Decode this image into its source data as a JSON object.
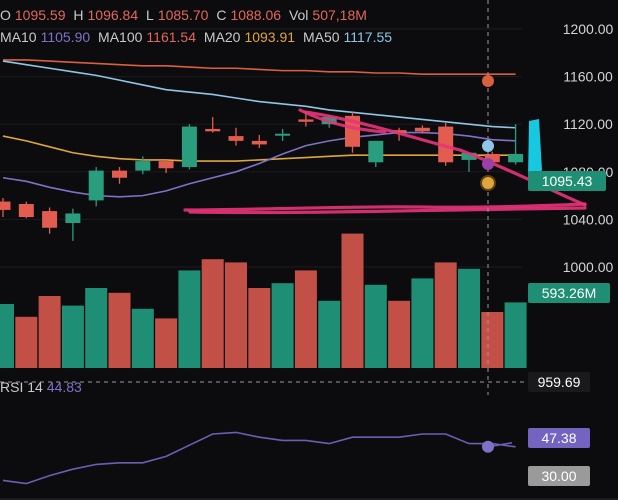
{
  "legend": {
    "o_label": "O",
    "o_value": "1095.59",
    "h_label": "H",
    "h_value": "1096.84",
    "l_label": "L",
    "l_value": "1085.70",
    "c_label": "C",
    "c_value": "1088.06",
    "vol_label": "Vol",
    "vol_value": "507,18M",
    "ma10_label": "MA10",
    "ma10_value": "1105.90",
    "ma100_label": "MA100",
    "ma100_value": "1161.54",
    "ma20_label": "MA20",
    "ma20_value": "1093.91",
    "ma50_label": "MA50",
    "ma50_value": "1117.55"
  },
  "rsi": {
    "label": "RSI 14",
    "value": "44.83"
  },
  "colors": {
    "up": "#2a9d7f",
    "down": "#e25c4f",
    "ma10": "#7e72c8",
    "ma20": "#e0a53c",
    "ma50": "#8fc6e6",
    "ma100": "#d9603e",
    "annotation": "#e8337a",
    "background": "#0c0c0e"
  },
  "chart_data": {
    "type": "candlestick",
    "y_axis": {
      "ticks": [
        "1200.00",
        "1160.00",
        "1120.00",
        "1080.00",
        "1040.00",
        "1000.00"
      ],
      "ylim": [
        953,
        1205
      ]
    },
    "price_label": "1095.43",
    "volume_label": "593.26M",
    "crosshair_price_label": "959.69",
    "candles": [
      {
        "o": 1055,
        "h": 1058,
        "l": 1042,
        "c": 1048
      },
      {
        "o": 1053,
        "h": 1055,
        "l": 1041,
        "c": 1042
      },
      {
        "o": 1047,
        "h": 1050,
        "l": 1028,
        "c": 1033
      },
      {
        "o": 1037,
        "h": 1049,
        "l": 1022,
        "c": 1045
      },
      {
        "o": 1056,
        "h": 1084,
        "l": 1051,
        "c": 1081
      },
      {
        "o": 1081,
        "h": 1084,
        "l": 1070,
        "c": 1075
      },
      {
        "o": 1081,
        "h": 1093,
        "l": 1078,
        "c": 1089
      },
      {
        "o": 1089,
        "h": 1090,
        "l": 1079,
        "c": 1083
      },
      {
        "o": 1084,
        "h": 1120,
        "l": 1082,
        "c": 1118
      },
      {
        "o": 1116,
        "h": 1126,
        "l": 1113,
        "c": 1114
      },
      {
        "o": 1110,
        "h": 1117,
        "l": 1102,
        "c": 1106
      },
      {
        "o": 1106,
        "h": 1111,
        "l": 1100,
        "c": 1103
      },
      {
        "o": 1112,
        "h": 1116,
        "l": 1106,
        "c": 1112
      },
      {
        "o": 1124,
        "h": 1130,
        "l": 1118,
        "c": 1122
      },
      {
        "o": 1120,
        "h": 1128,
        "l": 1117,
        "c": 1126
      },
      {
        "o": 1127,
        "h": 1130,
        "l": 1096,
        "c": 1101
      },
      {
        "o": 1088,
        "h": 1106,
        "l": 1084,
        "c": 1106
      },
      {
        "o": 1115,
        "h": 1117,
        "l": 1106,
        "c": 1113
      },
      {
        "o": 1117,
        "h": 1119,
        "l": 1112,
        "c": 1114
      },
      {
        "o": 1118,
        "h": 1121,
        "l": 1085,
        "c": 1088
      },
      {
        "o": 1090,
        "h": 1096,
        "l": 1080,
        "c": 1096
      },
      {
        "o": 1095,
        "h": 1097,
        "l": 1085,
        "c": 1088
      },
      {
        "o": 1088,
        "h": 1120,
        "l": 1086,
        "c": 1095
      }
    ],
    "volume": {
      "ylim": [
        0,
        100
      ],
      "values": [
        {
          "v": 40,
          "d": "up"
        },
        {
          "v": 32,
          "d": "down"
        },
        {
          "v": 45,
          "d": "down"
        },
        {
          "v": 39,
          "d": "up"
        },
        {
          "v": 50,
          "d": "up"
        },
        {
          "v": 47,
          "d": "down"
        },
        {
          "v": 37,
          "d": "up"
        },
        {
          "v": 31,
          "d": "down"
        },
        {
          "v": 61,
          "d": "up"
        },
        {
          "v": 68,
          "d": "down"
        },
        {
          "v": 66,
          "d": "down"
        },
        {
          "v": 50,
          "d": "down"
        },
        {
          "v": 53,
          "d": "up"
        },
        {
          "v": 61,
          "d": "down"
        },
        {
          "v": 42,
          "d": "up"
        },
        {
          "v": 84,
          "d": "down"
        },
        {
          "v": 52,
          "d": "up"
        },
        {
          "v": 42,
          "d": "down"
        },
        {
          "v": 56,
          "d": "up"
        },
        {
          "v": 66,
          "d": "down"
        },
        {
          "v": 62,
          "d": "up"
        },
        {
          "v": 35,
          "d": "down"
        },
        {
          "v": 41,
          "d": "up"
        }
      ]
    },
    "ma10": [
      1075,
      1072,
      1067,
      1063,
      1060,
      1059,
      1060,
      1064,
      1070,
      1075,
      1080,
      1087,
      1095,
      1102,
      1106,
      1109,
      1111,
      1113,
      1113,
      1112,
      1110,
      1107,
      1106
    ],
    "ma20": [
      1110,
      1106,
      1101,
      1096,
      1093,
      1091,
      1090,
      1090,
      1089,
      1089,
      1089,
      1090,
      1091,
      1092,
      1093,
      1094,
      1094,
      1094,
      1094,
      1094,
      1094,
      1094,
      1094
    ],
    "ma50": [
      1173,
      1170,
      1167,
      1164,
      1161,
      1157,
      1153,
      1149,
      1147,
      1145,
      1142,
      1139,
      1137,
      1135,
      1132,
      1130,
      1128,
      1126,
      1124,
      1122,
      1120,
      1118,
      1117
    ],
    "ma100": [
      1174,
      1174,
      1173,
      1172,
      1171,
      1170,
      1169,
      1169,
      1168,
      1167,
      1167,
      1166,
      1165,
      1165,
      1164,
      1164,
      1163,
      1163,
      1162,
      1162,
      1162,
      1162,
      1162
    ],
    "rsi": {
      "ylim": [
        20,
        70
      ],
      "ticks": [
        "47.38",
        "30.00"
      ],
      "values": [
        26,
        24,
        29,
        33,
        36,
        37,
        37,
        41,
        48,
        55,
        56,
        53,
        51,
        51,
        49,
        53,
        53,
        53,
        55,
        55,
        49,
        49,
        47
      ]
    }
  }
}
